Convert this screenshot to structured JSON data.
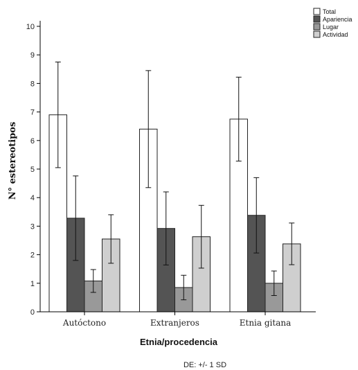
{
  "chart_data": {
    "type": "bar",
    "categories": [
      "Autóctono",
      "Extranjeros",
      "Etnia gitana"
    ],
    "series": [
      {
        "name": "Total",
        "values": [
          6.9,
          6.4,
          6.75
        ],
        "sd": [
          1.85,
          2.05,
          1.47
        ],
        "color": "#ffffff"
      },
      {
        "name": "Apariencia",
        "values": [
          3.28,
          2.92,
          3.38
        ],
        "sd": [
          1.48,
          1.28,
          1.32
        ],
        "color": "#545454"
      },
      {
        "name": "Lugar",
        "values": [
          1.08,
          0.85,
          1.0
        ],
        "sd": [
          0.4,
          0.43,
          0.43
        ],
        "color": "#999999"
      },
      {
        "name": "Actividad",
        "values": [
          2.55,
          2.63,
          2.38
        ],
        "sd": [
          0.85,
          1.1,
          0.73
        ],
        "color": "#cfcfcf"
      }
    ],
    "yticks": [
      0,
      1,
      2,
      3,
      4,
      5,
      6,
      7,
      8,
      9,
      10
    ],
    "ylim": [
      0,
      10.5
    ],
    "xlabel": "Etnia/procedencia",
    "ylabel": "N° estereotipos",
    "note": "DE: +/- 1 SD",
    "legend_position": "top-right"
  }
}
